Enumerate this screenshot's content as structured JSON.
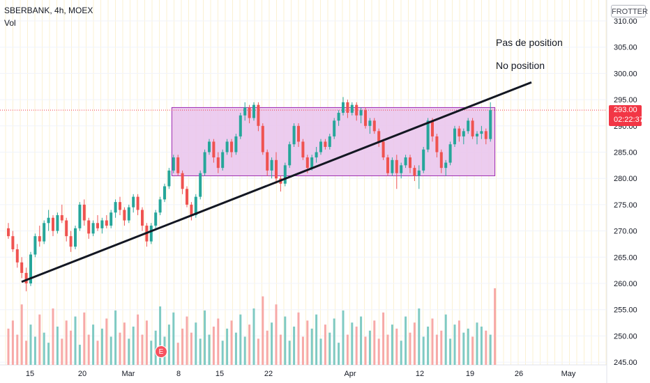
{
  "header": {
    "title": "SBERBANK, 4h, MOEX",
    "indicator": "Vol"
  },
  "scale_badge": "FROTTER",
  "notes": {
    "line1": "Pas de position",
    "line2": "No position"
  },
  "last_price": {
    "value": "293.00",
    "countdown": "02:22:37"
  },
  "event_marker": "E",
  "colors": {
    "up": "#26a69a",
    "down": "#ef5350",
    "vol_up": "#7fcac3",
    "vol_down": "#f7a9a7",
    "box_fill": "#e9c3ec",
    "box_border": "#9c27b0",
    "trendline": "#131722",
    "grid": "#fbf1d2",
    "last_price": "#f23645"
  },
  "chart_data": {
    "type": "candlestick",
    "title": "SBERBANK, 4h, MOEX",
    "y_ticks": [
      "310.00",
      "305.00",
      "300.00",
      "295.00",
      "290.00",
      "285.00",
      "280.00",
      "275.00",
      "270.00",
      "265.00",
      "260.00",
      "255.00",
      "250.00",
      "245.00"
    ],
    "ylim": [
      244.5,
      312.5
    ],
    "x_ticks": [
      "15",
      "20",
      "Mar",
      "8",
      "15",
      "22",
      "Apr",
      "12",
      "19",
      "26",
      "May"
    ],
    "grid": true,
    "series": [
      {
        "values": [
          [
            270.5,
            271.5,
            268.5,
            269.0
          ],
          [
            269.0,
            270.0,
            266.0,
            266.5
          ],
          [
            266.5,
            267.5,
            263.0,
            264.0
          ],
          [
            264.0,
            265.0,
            261.0,
            262.0
          ],
          [
            262.0,
            263.0,
            258.5,
            260.0
          ],
          [
            260.0,
            266.0,
            259.5,
            265.5
          ],
          [
            265.5,
            269.5,
            265.0,
            269.0
          ],
          [
            269.0,
            271.0,
            267.0,
            268.0
          ],
          [
            268.0,
            272.0,
            267.5,
            271.5
          ],
          [
            271.5,
            274.0,
            270.0,
            272.5
          ],
          [
            272.5,
            273.0,
            269.0,
            270.0
          ],
          [
            270.0,
            273.5,
            269.5,
            273.0
          ],
          [
            273.0,
            275.0,
            271.5,
            272.0
          ],
          [
            272.0,
            272.5,
            268.0,
            269.0
          ],
          [
            269.0,
            270.0,
            266.0,
            267.0
          ],
          [
            267.0,
            271.0,
            266.5,
            270.5
          ],
          [
            270.5,
            275.5,
            270.0,
            275.0
          ],
          [
            275.0,
            276.0,
            271.0,
            272.0
          ],
          [
            272.0,
            272.5,
            268.5,
            269.5
          ],
          [
            269.5,
            272.0,
            269.0,
            271.5
          ],
          [
            271.5,
            273.0,
            270.0,
            270.5
          ],
          [
            270.5,
            272.5,
            269.5,
            272.0
          ],
          [
            272.0,
            273.0,
            270.5,
            271.0
          ],
          [
            271.0,
            274.0,
            270.5,
            273.5
          ],
          [
            273.5,
            276.0,
            272.5,
            275.5
          ],
          [
            275.5,
            276.5,
            273.0,
            274.0
          ],
          [
            274.0,
            274.5,
            271.0,
            272.0
          ],
          [
            272.0,
            275.0,
            271.5,
            274.5
          ],
          [
            274.5,
            277.0,
            273.5,
            276.5
          ],
          [
            276.5,
            277.0,
            273.0,
            274.0
          ],
          [
            274.0,
            274.5,
            270.0,
            271.0
          ],
          [
            271.0,
            271.5,
            267.0,
            268.0
          ],
          [
            268.0,
            271.5,
            267.5,
            271.0
          ],
          [
            271.0,
            274.0,
            270.5,
            273.5
          ],
          [
            273.5,
            276.5,
            273.0,
            276.0
          ],
          [
            276.0,
            279.0,
            275.5,
            278.5
          ],
          [
            278.5,
            282.0,
            278.0,
            281.5
          ],
          [
            281.5,
            284.5,
            281.0,
            284.0
          ],
          [
            284.0,
            284.5,
            280.5,
            281.0
          ],
          [
            281.0,
            281.5,
            277.0,
            278.0
          ],
          [
            278.0,
            278.5,
            274.5,
            275.0
          ],
          [
            275.0,
            275.5,
            272.0,
            273.0
          ],
          [
            273.0,
            277.0,
            272.5,
            276.5
          ],
          [
            276.5,
            281.5,
            276.0,
            281.0
          ],
          [
            281.0,
            285.5,
            280.5,
            285.0
          ],
          [
            285.0,
            287.5,
            284.5,
            287.0
          ],
          [
            287.0,
            287.5,
            283.0,
            284.0
          ],
          [
            284.0,
            285.0,
            281.0,
            282.0
          ],
          [
            282.0,
            285.5,
            281.5,
            285.0
          ],
          [
            285.0,
            287.5,
            284.5,
            287.0
          ],
          [
            287.0,
            287.5,
            284.0,
            285.0
          ],
          [
            285.0,
            288.5,
            284.5,
            288.0
          ],
          [
            288.0,
            292.5,
            287.5,
            292.0
          ],
          [
            292.0,
            294.5,
            291.0,
            293.5
          ],
          [
            293.5,
            294.0,
            290.5,
            291.5
          ],
          [
            291.5,
            294.5,
            291.0,
            294.0
          ],
          [
            294.0,
            294.5,
            289.0,
            290.0
          ],
          [
            290.0,
            290.5,
            284.5,
            285.0
          ],
          [
            285.0,
            285.5,
            280.5,
            281.5
          ],
          [
            281.5,
            284.0,
            280.0,
            283.5
          ],
          [
            283.5,
            285.0,
            279.0,
            280.0
          ],
          [
            280.0,
            280.5,
            277.5,
            279.0
          ],
          [
            279.0,
            283.0,
            278.5,
            282.5
          ],
          [
            282.5,
            287.0,
            282.0,
            286.5
          ],
          [
            286.5,
            290.5,
            286.0,
            290.0
          ],
          [
            290.0,
            290.5,
            286.0,
            287.0
          ],
          [
            287.0,
            287.5,
            283.5,
            284.0
          ],
          [
            284.0,
            284.5,
            281.0,
            282.0
          ],
          [
            282.0,
            284.5,
            281.5,
            284.0
          ],
          [
            284.0,
            286.0,
            283.0,
            285.0
          ],
          [
            285.0,
            287.5,
            284.5,
            287.0
          ],
          [
            287.0,
            287.5,
            285.5,
            286.0
          ],
          [
            286.0,
            288.5,
            285.5,
            288.0
          ],
          [
            288.0,
            291.5,
            287.5,
            291.0
          ],
          [
            291.0,
            293.0,
            290.0,
            292.5
          ],
          [
            292.5,
            295.5,
            292.0,
            294.5
          ],
          [
            294.5,
            295.0,
            291.5,
            292.5
          ],
          [
            292.5,
            294.5,
            292.0,
            294.0
          ],
          [
            294.0,
            294.5,
            291.0,
            292.0
          ],
          [
            292.0,
            293.5,
            290.5,
            293.0
          ],
          [
            293.0,
            293.5,
            289.5,
            290.0
          ],
          [
            290.0,
            291.5,
            288.5,
            291.0
          ],
          [
            291.0,
            291.5,
            288.5,
            289.0
          ],
          [
            289.0,
            289.5,
            286.0,
            287.0
          ],
          [
            287.0,
            287.5,
            283.5,
            284.0
          ],
          [
            284.0,
            284.5,
            280.5,
            281.0
          ],
          [
            281.0,
            284.0,
            280.5,
            283.5
          ],
          [
            283.5,
            284.5,
            278.0,
            281.0
          ],
          [
            281.0,
            283.0,
            280.0,
            282.5
          ],
          [
            282.5,
            284.5,
            282.0,
            284.0
          ],
          [
            284.0,
            284.5,
            281.0,
            282.0
          ],
          [
            282.0,
            282.5,
            279.5,
            280.5
          ],
          [
            280.5,
            282.5,
            278.0,
            281.5
          ],
          [
            281.5,
            286.0,
            281.0,
            285.5
          ],
          [
            285.5,
            291.5,
            285.0,
            291.0
          ],
          [
            291.0,
            291.5,
            287.0,
            288.0
          ],
          [
            288.0,
            288.5,
            284.0,
            285.0
          ],
          [
            285.0,
            285.5,
            281.0,
            282.0
          ],
          [
            282.0,
            283.5,
            280.5,
            283.0
          ],
          [
            283.0,
            287.0,
            282.5,
            286.5
          ],
          [
            286.5,
            290.0,
            286.0,
            289.5
          ],
          [
            289.5,
            290.0,
            287.0,
            288.0
          ],
          [
            288.0,
            289.5,
            286.5,
            289.0
          ],
          [
            289.0,
            291.5,
            288.5,
            291.0
          ],
          [
            291.0,
            291.5,
            287.5,
            288.0
          ],
          [
            288.0,
            289.0,
            286.5,
            288.5
          ],
          [
            288.5,
            290.0,
            287.5,
            289.0
          ],
          [
            289.0,
            289.5,
            286.5,
            287.5
          ],
          [
            287.5,
            294.5,
            287.0,
            293.0
          ]
        ]
      }
    ],
    "volume": [
      18,
      22,
      15,
      30,
      12,
      20,
      14,
      25,
      16,
      11,
      28,
      19,
      13,
      22,
      17,
      24,
      10,
      26,
      15,
      20,
      12,
      18,
      23,
      14,
      27,
      16,
      21,
      13,
      19,
      25,
      15,
      22,
      12,
      17,
      29,
      14,
      20,
      26,
      11,
      18,
      24,
      16,
      21,
      13,
      27,
      15,
      19,
      23,
      12,
      18,
      22,
      16,
      25,
      14,
      20,
      28,
      13,
      34,
      17,
      21,
      30,
      15,
      24,
      12,
      19,
      26,
      14,
      22,
      18,
      25,
      13,
      20,
      16,
      23,
      11,
      27,
      15,
      21,
      19,
      24,
      14,
      17,
      22,
      13,
      26,
      15,
      20,
      18,
      12,
      24,
      16,
      21,
      28,
      14,
      19,
      23,
      15,
      17,
      25,
      13,
      20,
      22,
      16,
      18,
      14,
      21,
      19,
      17,
      15,
      38
    ],
    "trendline": {
      "from": [
        0,
        260.3
      ],
      "to": [
        140,
        298.3
      ]
    },
    "range_box": {
      "from_index": 36,
      "to_index": 109,
      "top": 293.5,
      "bottom": 280.5
    }
  }
}
